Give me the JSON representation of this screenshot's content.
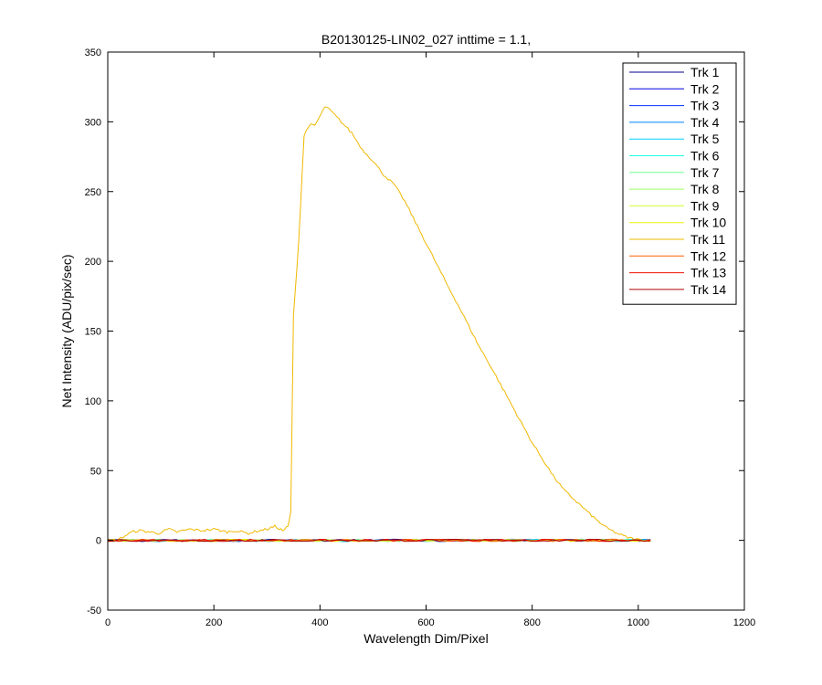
{
  "chart_data": {
    "type": "line",
    "title": "B20130125-LIN02_027 inttime = 1.1,",
    "xlabel": "Wavelength Dim/Pixel",
    "ylabel": "Net Intensity (ADU/pix/sec)",
    "xlim": [
      0,
      1200
    ],
    "ylim": [
      -50,
      350
    ],
    "xticks": [
      0,
      200,
      400,
      600,
      800,
      1000,
      1200
    ],
    "yticks": [
      -50,
      0,
      50,
      100,
      150,
      200,
      250,
      300,
      350
    ],
    "xtick_labels": [
      "0",
      "200",
      "400",
      "600",
      "800",
      "1000",
      "1200"
    ],
    "ytick_labels": [
      "-50",
      "0",
      "50",
      "100",
      "150",
      "200",
      "250",
      "300",
      "350"
    ],
    "grid": false,
    "legend_position": "top-right",
    "series": [
      {
        "name": "Trk 1",
        "color": "#00008f",
        "x": [
          0,
          1023
        ],
        "y": [
          0,
          0
        ]
      },
      {
        "name": "Trk 2",
        "color": "#0000df",
        "x": [
          0,
          1023
        ],
        "y": [
          0,
          0
        ]
      },
      {
        "name": "Trk 3",
        "color": "#0030ff",
        "x": [
          0,
          1023
        ],
        "y": [
          0,
          0
        ]
      },
      {
        "name": "Trk 4",
        "color": "#0080ff",
        "x": [
          0,
          1023
        ],
        "y": [
          0,
          0
        ]
      },
      {
        "name": "Trk 5",
        "color": "#00cfff",
        "x": [
          0,
          1023
        ],
        "y": [
          0,
          0
        ]
      },
      {
        "name": "Trk 6",
        "color": "#20ffdf",
        "x": [
          0,
          1023
        ],
        "y": [
          0,
          0
        ]
      },
      {
        "name": "Trk 7",
        "color": "#70ff8f",
        "x": [
          0,
          1023
        ],
        "y": [
          0,
          0
        ]
      },
      {
        "name": "Trk 8",
        "color": "#9fff60",
        "x": [
          0,
          1023
        ],
        "y": [
          0,
          0
        ]
      },
      {
        "name": "Trk 9",
        "color": "#cfff30",
        "x": [
          0,
          1023
        ],
        "y": [
          0,
          0
        ]
      },
      {
        "name": "Trk 10",
        "color": "#efef00",
        "x": [
          0,
          1023
        ],
        "y": [
          0,
          0
        ]
      },
      {
        "name": "Trk 11",
        "color": "#f0b800",
        "x": [
          0,
          20,
          45,
          60,
          80,
          95,
          115,
          130,
          155,
          175,
          200,
          225,
          240,
          265,
          285,
          300,
          315,
          330,
          340,
          345,
          350,
          360,
          370,
          380,
          390,
          400,
          410,
          420,
          440,
          460,
          480,
          500,
          520,
          540,
          560,
          580,
          600,
          620,
          640,
          660,
          680,
          700,
          720,
          740,
          760,
          780,
          800,
          820,
          840,
          860,
          880,
          900,
          920,
          940,
          960,
          980,
          1000,
          1023
        ],
        "y": [
          0,
          0.5,
          6,
          7,
          6,
          5,
          8,
          6,
          8,
          7,
          8,
          6,
          7,
          5,
          7,
          8,
          10,
          7,
          10,
          20,
          160,
          215,
          290,
          298,
          297,
          304,
          311,
          308,
          300,
          292,
          280,
          272,
          262,
          255,
          243,
          228,
          213,
          198,
          183,
          169,
          154,
          139,
          126,
          112,
          98,
          84,
          70,
          58,
          46,
          36,
          29,
          22,
          15,
          9,
          5,
          2,
          0.5,
          0
        ]
      },
      {
        "name": "Trk 12",
        "color": "#ff6000",
        "x": [
          0,
          1023
        ],
        "y": [
          0,
          0
        ]
      },
      {
        "name": "Trk 13",
        "color": "#ef1000",
        "x": [
          0,
          1023
        ],
        "y": [
          0,
          0
        ]
      },
      {
        "name": "Trk 14",
        "color": "#b00000",
        "x": [
          0,
          1023
        ],
        "y": [
          0,
          0
        ]
      }
    ]
  }
}
